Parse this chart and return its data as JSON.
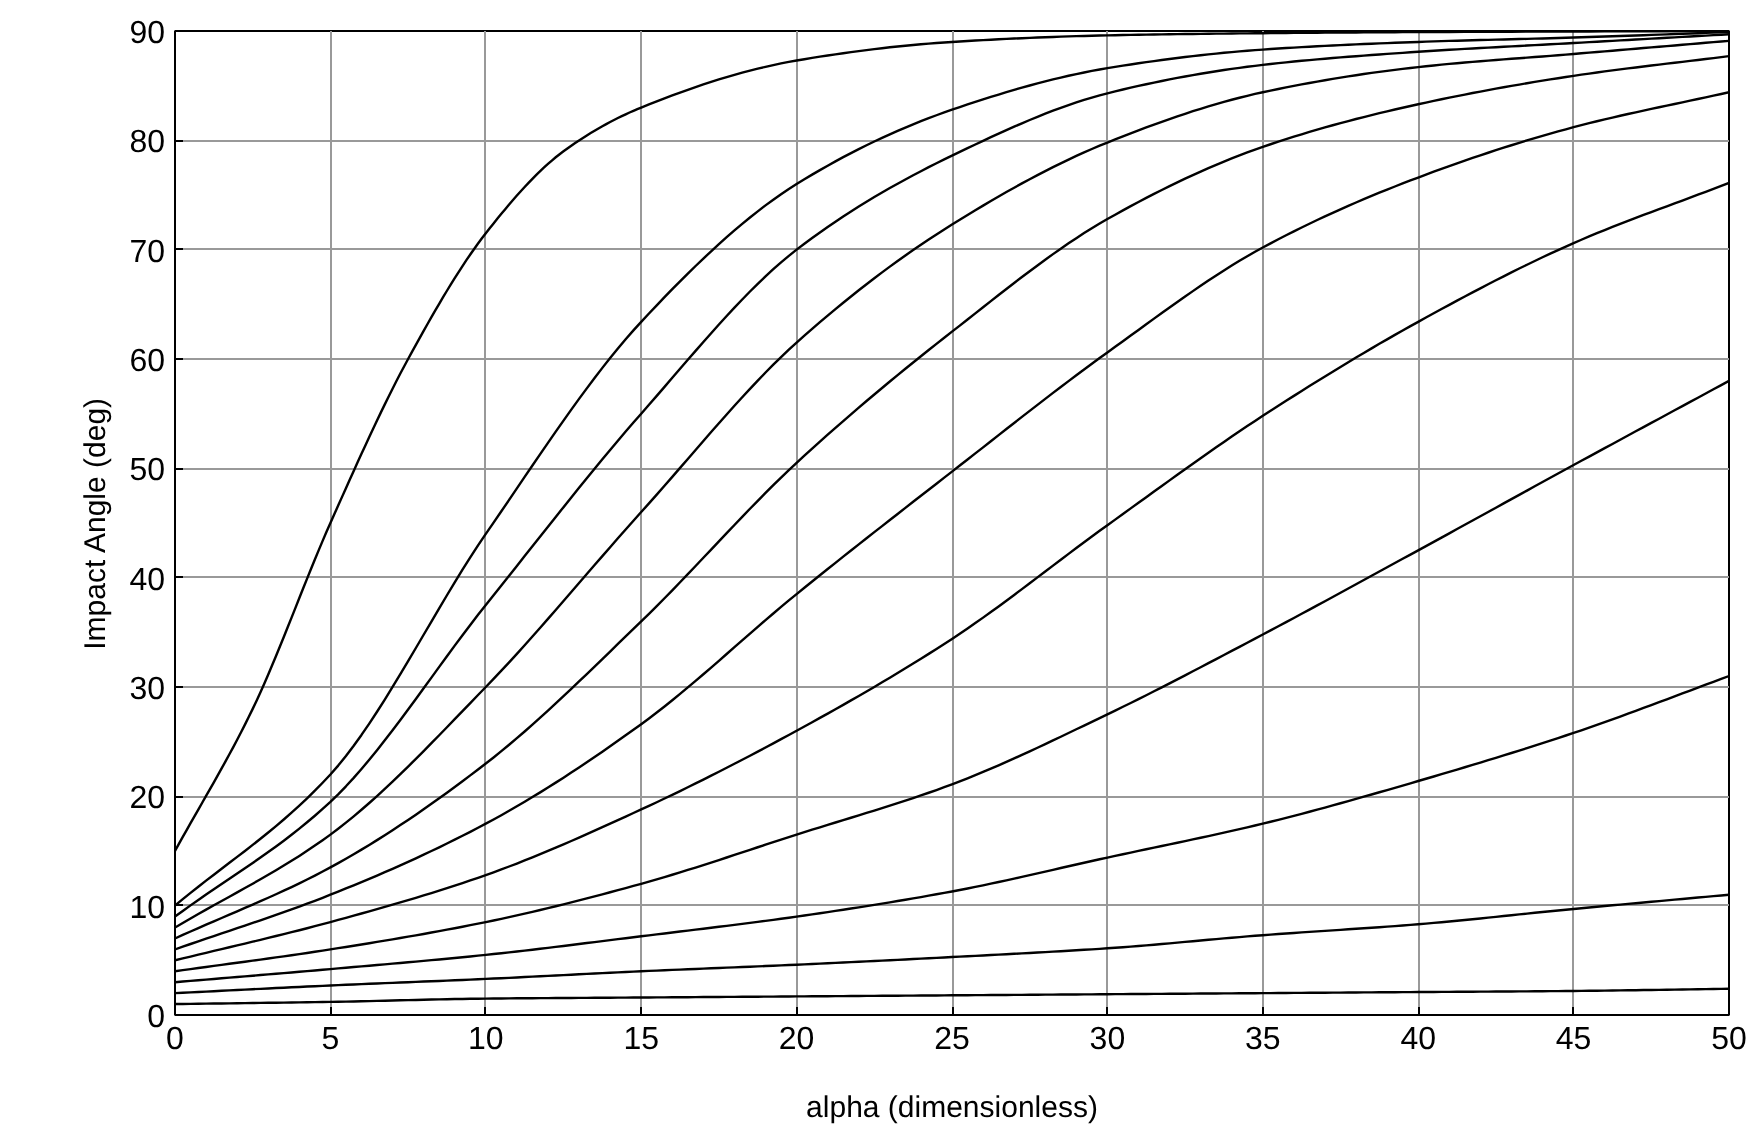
{
  "chart_data": {
    "type": "line",
    "xlabel": "alpha (dimensionless)",
    "ylabel": "Impact Angle (deg)",
    "x": [
      0,
      5,
      10,
      15,
      20,
      25,
      30,
      35,
      40,
      45,
      50
    ],
    "xlim": [
      0,
      50
    ],
    "ylim": [
      0,
      90
    ],
    "xticks": [
      0,
      5,
      10,
      15,
      20,
      25,
      30,
      35,
      40,
      45,
      50
    ],
    "yticks": [
      0,
      10,
      20,
      30,
      40,
      50,
      60,
      70,
      80,
      90
    ],
    "grid": true,
    "marker": "none",
    "line_style": "solid",
    "series": [
      {
        "color": "#000000",
        "x": [
          0,
          2.5,
          5,
          7.5,
          10,
          12.5,
          15,
          20,
          25,
          30,
          35,
          40,
          50
        ],
        "values": [
          15,
          28,
          45,
          60,
          71.5,
          79,
          83,
          87.3,
          89,
          89.6,
          89.8,
          89.9,
          90
        ]
      },
      {
        "color": "#000000",
        "values": [
          10,
          22,
          44,
          63.4,
          76,
          82.8,
          86.6,
          88.3,
          89,
          89.4,
          89.9
        ]
      },
      {
        "color": "#000000",
        "values": [
          9,
          19.5,
          37.5,
          55,
          70,
          78.6,
          84.3,
          86.9,
          88.1,
          88.9,
          89.7
        ]
      },
      {
        "color": "#000000",
        "values": [
          8,
          16.5,
          30,
          46,
          61.5,
          72.3,
          79.8,
          84.4,
          86.7,
          87.9,
          89.1
        ]
      },
      {
        "color": "#000000",
        "values": [
          7,
          13.5,
          23,
          36,
          50.5,
          62.5,
          72.8,
          79.4,
          83.3,
          85.9,
          87.7
        ]
      },
      {
        "color": "#000000",
        "values": [
          6,
          11,
          17.5,
          26.6,
          38.5,
          49.7,
          60.6,
          70.2,
          76.6,
          81.2,
          84.4
        ]
      },
      {
        "color": "#000000",
        "values": [
          5,
          8.5,
          12.8,
          18.8,
          26,
          34.4,
          44.8,
          54.8,
          63.4,
          70.6,
          76.1
        ]
      },
      {
        "color": "#000000",
        "values": [
          4,
          6,
          8.5,
          12,
          16.5,
          21.1,
          27.5,
          34.8,
          42.5,
          50.3,
          58
        ]
      },
      {
        "color": "#000000",
        "values": [
          3,
          4.2,
          5.5,
          7.2,
          9,
          11.3,
          14.4,
          17.5,
          21.4,
          25.8,
          31
        ]
      },
      {
        "color": "#000000",
        "values": [
          2,
          2.7,
          3.3,
          4,
          4.6,
          5.3,
          6.1,
          7.3,
          8.3,
          9.7,
          11
        ]
      },
      {
        "color": "#000000",
        "values": [
          1,
          1.2,
          1.5,
          1.6,
          1.7,
          1.8,
          1.9,
          2,
          2.1,
          2.2,
          2.4
        ]
      }
    ]
  }
}
